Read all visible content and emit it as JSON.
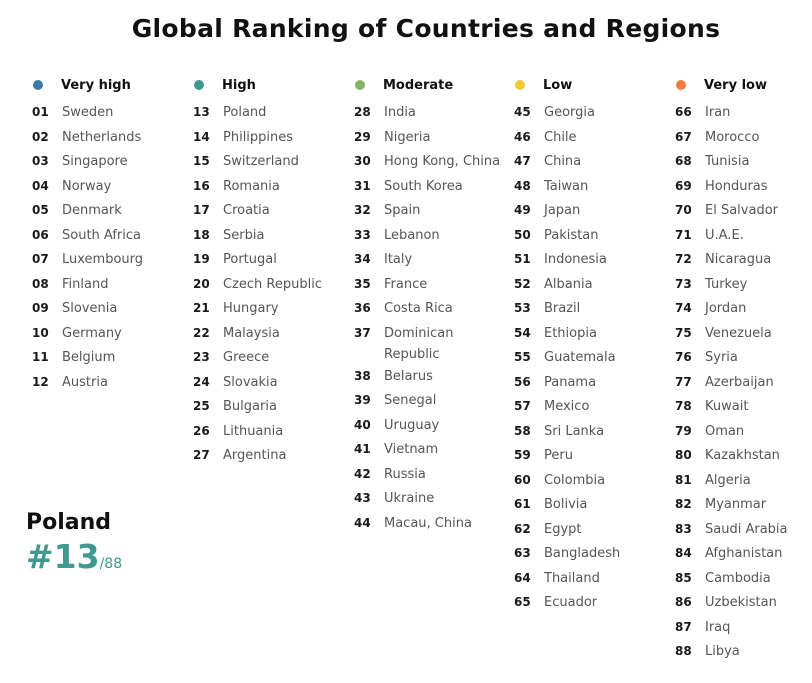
{
  "title": "Global Ranking of Countries and Regions",
  "colors": {
    "very_high": "#3d7aa6",
    "high": "#3e9a8f",
    "moderate": "#86b36a",
    "low": "#f0c933",
    "very_low": "#ef7d3d",
    "accent": "#3e9a8f"
  },
  "groups": [
    {
      "label": "Very high",
      "entries": [
        {
          "rank": "01",
          "name": "Sweden"
        },
        {
          "rank": "02",
          "name": "Netherlands"
        },
        {
          "rank": "03",
          "name": "Singapore"
        },
        {
          "rank": "04",
          "name": "Norway"
        },
        {
          "rank": "05",
          "name": "Denmark"
        },
        {
          "rank": "06",
          "name": "South Africa"
        },
        {
          "rank": "07",
          "name": "Luxembourg"
        },
        {
          "rank": "08",
          "name": "Finland"
        },
        {
          "rank": "09",
          "name": "Slovenia"
        },
        {
          "rank": "10",
          "name": "Germany"
        },
        {
          "rank": "11",
          "name": "Belgium"
        },
        {
          "rank": "12",
          "name": "Austria"
        }
      ]
    },
    {
      "label": "High",
      "entries": [
        {
          "rank": "13",
          "name": "Poland"
        },
        {
          "rank": "14",
          "name": "Philippines"
        },
        {
          "rank": "15",
          "name": "Switzerland"
        },
        {
          "rank": "16",
          "name": "Romania"
        },
        {
          "rank": "17",
          "name": "Croatia"
        },
        {
          "rank": "18",
          "name": "Serbia"
        },
        {
          "rank": "19",
          "name": "Portugal"
        },
        {
          "rank": "20",
          "name": "Czech Republic"
        },
        {
          "rank": "21",
          "name": "Hungary"
        },
        {
          "rank": "22",
          "name": "Malaysia"
        },
        {
          "rank": "23",
          "name": "Greece"
        },
        {
          "rank": "24",
          "name": "Slovakia"
        },
        {
          "rank": "25",
          "name": "Bulgaria"
        },
        {
          "rank": "26",
          "name": "Lithuania"
        },
        {
          "rank": "27",
          "name": "Argentina"
        }
      ]
    },
    {
      "label": "Moderate",
      "entries": [
        {
          "rank": "28",
          "name": "India"
        },
        {
          "rank": "29",
          "name": "Nigeria"
        },
        {
          "rank": "30",
          "name": "Hong Kong, China"
        },
        {
          "rank": "31",
          "name": "South Korea"
        },
        {
          "rank": "32",
          "name": "Spain"
        },
        {
          "rank": "33",
          "name": "Lebanon"
        },
        {
          "rank": "34",
          "name": "Italy"
        },
        {
          "rank": "35",
          "name": "France"
        },
        {
          "rank": "36",
          "name": "Costa Rica"
        },
        {
          "rank": "37",
          "name": "Dominican Republic"
        },
        {
          "rank": "38",
          "name": "Belarus"
        },
        {
          "rank": "39",
          "name": "Senegal"
        },
        {
          "rank": "40",
          "name": "Uruguay"
        },
        {
          "rank": "41",
          "name": "Vietnam"
        },
        {
          "rank": "42",
          "name": "Russia"
        },
        {
          "rank": "43",
          "name": "Ukraine"
        },
        {
          "rank": "44",
          "name": "Macau, China"
        }
      ]
    },
    {
      "label": "Low",
      "entries": [
        {
          "rank": "45",
          "name": "Georgia"
        },
        {
          "rank": "46",
          "name": "Chile"
        },
        {
          "rank": "47",
          "name": "China"
        },
        {
          "rank": "48",
          "name": "Taiwan"
        },
        {
          "rank": "49",
          "name": "Japan"
        },
        {
          "rank": "50",
          "name": "Pakistan"
        },
        {
          "rank": "51",
          "name": "Indonesia"
        },
        {
          "rank": "52",
          "name": "Albania"
        },
        {
          "rank": "53",
          "name": "Brazil"
        },
        {
          "rank": "54",
          "name": "Ethiopia"
        },
        {
          "rank": "55",
          "name": "Guatemala"
        },
        {
          "rank": "56",
          "name": "Panama"
        },
        {
          "rank": "57",
          "name": "Mexico"
        },
        {
          "rank": "58",
          "name": "Sri Lanka"
        },
        {
          "rank": "59",
          "name": "Peru"
        },
        {
          "rank": "60",
          "name": "Colombia"
        },
        {
          "rank": "61",
          "name": "Bolivia"
        },
        {
          "rank": "62",
          "name": "Egypt"
        },
        {
          "rank": "63",
          "name": "Bangladesh"
        },
        {
          "rank": "64",
          "name": "Thailand"
        },
        {
          "rank": "65",
          "name": "Ecuador"
        }
      ]
    },
    {
      "label": "Very low",
      "entries": [
        {
          "rank": "66",
          "name": "Iran"
        },
        {
          "rank": "67",
          "name": "Morocco"
        },
        {
          "rank": "68",
          "name": "Tunisia"
        },
        {
          "rank": "69",
          "name": "Honduras"
        },
        {
          "rank": "70",
          "name": "El Salvador"
        },
        {
          "rank": "71",
          "name": "U.A.E."
        },
        {
          "rank": "72",
          "name": "Nicaragua"
        },
        {
          "rank": "73",
          "name": "Turkey"
        },
        {
          "rank": "74",
          "name": "Jordan"
        },
        {
          "rank": "75",
          "name": "Venezuela"
        },
        {
          "rank": "76",
          "name": "Syria"
        },
        {
          "rank": "77",
          "name": "Azerbaijan"
        },
        {
          "rank": "78",
          "name": "Kuwait"
        },
        {
          "rank": "79",
          "name": "Oman"
        },
        {
          "rank": "80",
          "name": "Kazakhstan"
        },
        {
          "rank": "81",
          "name": "Algeria"
        },
        {
          "rank": "82",
          "name": "Myanmar"
        },
        {
          "rank": "83",
          "name": "Saudi Arabia"
        },
        {
          "rank": "84",
          "name": "Afghanistan"
        },
        {
          "rank": "85",
          "name": "Cambodia"
        },
        {
          "rank": "86",
          "name": "Uzbekistan"
        },
        {
          "rank": "87",
          "name": "Iraq"
        },
        {
          "rank": "88",
          "name": "Libya"
        }
      ]
    }
  ],
  "highlight": {
    "country": "Poland",
    "rank": "#13",
    "total": "/88"
  }
}
